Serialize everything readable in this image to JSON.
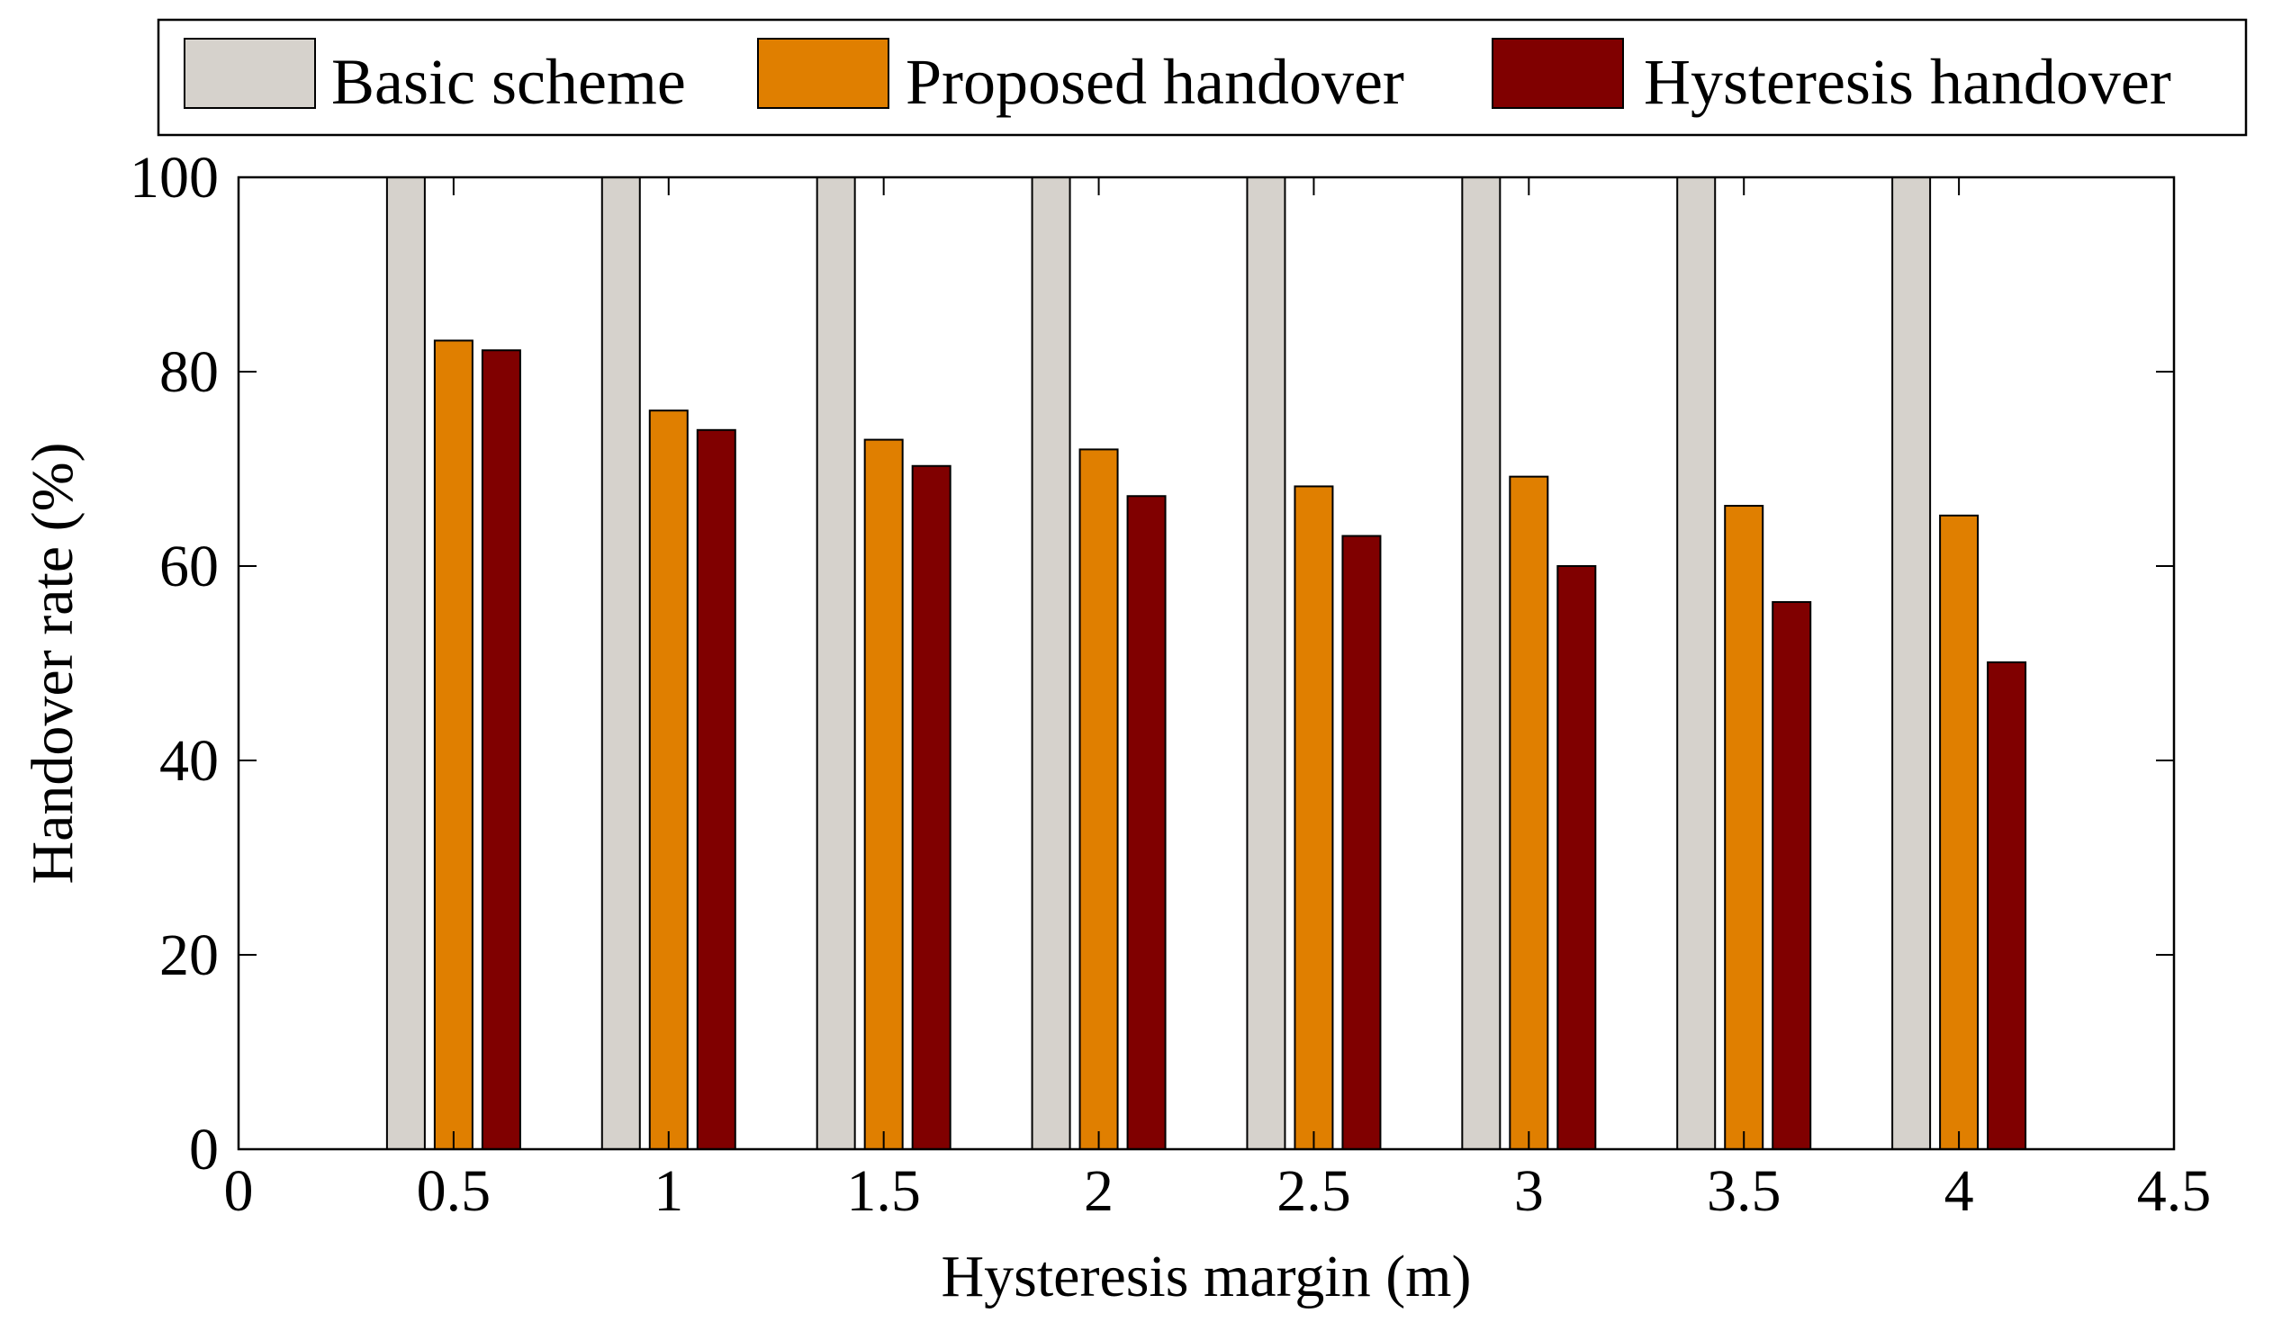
{
  "chart_data": {
    "type": "bar",
    "title": "",
    "xlabel": "Hysteresis margin (m)",
    "ylabel": "Handover rate (%)",
    "xlim": [
      0,
      4.5
    ],
    "ylim": [
      0,
      100
    ],
    "xticks": [
      "0",
      "0.5",
      "1",
      "1.5",
      "2",
      "2.5",
      "3",
      "3.5",
      "4",
      "4.5"
    ],
    "yticks": [
      "0",
      "20",
      "40",
      "60",
      "80",
      "100"
    ],
    "x": [
      0.5,
      1,
      1.5,
      2,
      2.5,
      3,
      3.5,
      4
    ],
    "grid": false,
    "legend_position": "top",
    "series": [
      {
        "name": "Basic scheme",
        "color": "#d6d2cc",
        "values": [
          100,
          100,
          100,
          100,
          100,
          100,
          100,
          100
        ]
      },
      {
        "name": "Proposed handover",
        "color": "#e07f00",
        "values": [
          83.2,
          76,
          73,
          72,
          68.2,
          69.2,
          66.2,
          65.2
        ]
      },
      {
        "name": "Hysteresis handover",
        "color": "#800000",
        "values": [
          82.2,
          74,
          70.3,
          67.2,
          63.1,
          60,
          56.3,
          50.1
        ]
      }
    ]
  }
}
